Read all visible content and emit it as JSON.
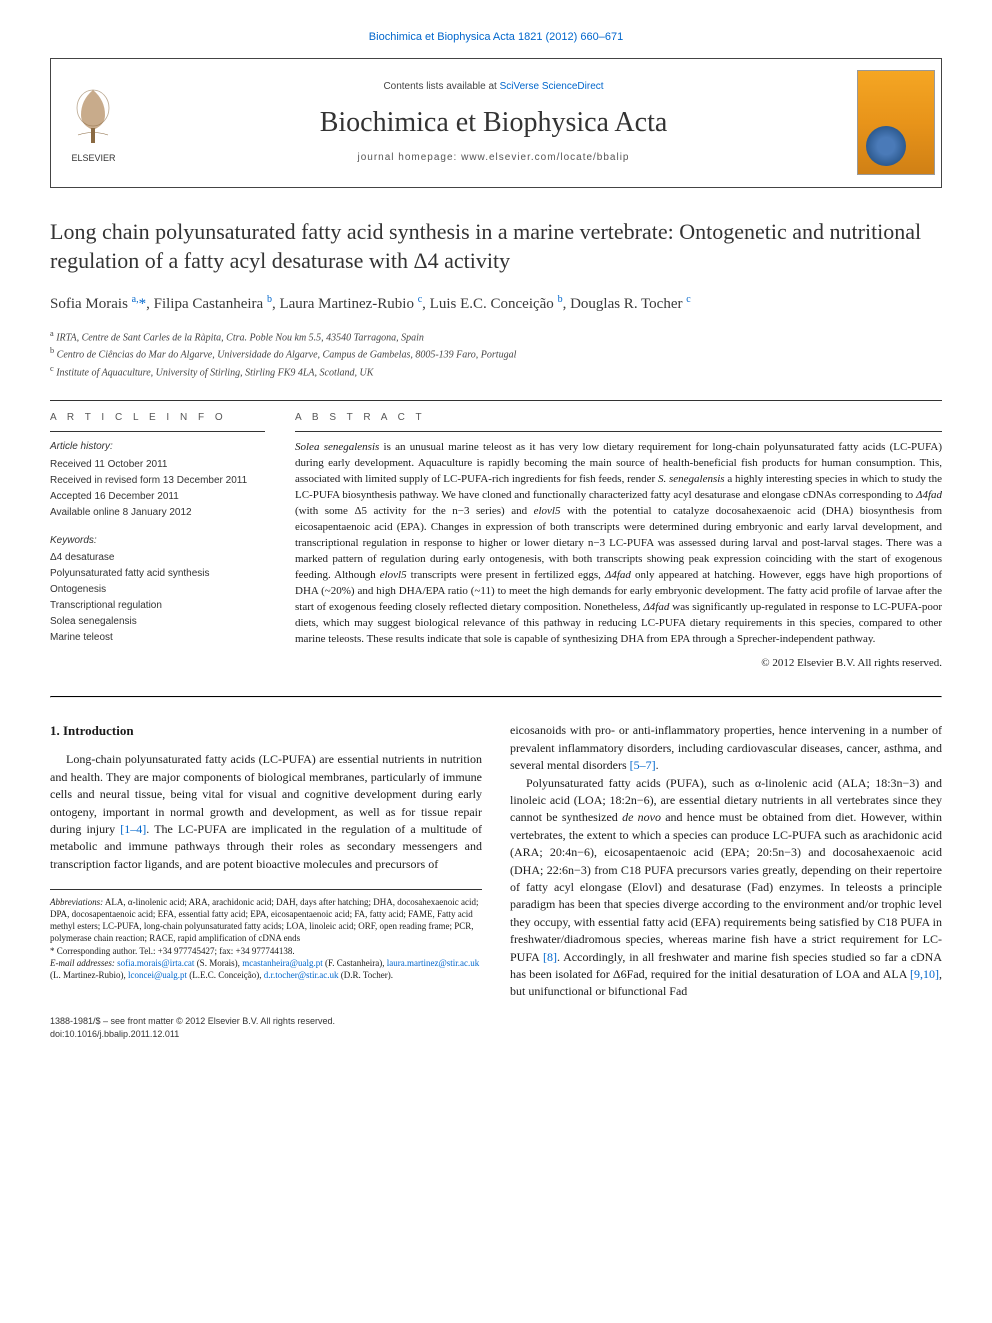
{
  "header": {
    "journal_link_text": "Biochimica et Biophysica Acta 1821 (2012) 660–671",
    "journal_link_color": "#0066cc",
    "contents_prefix": "Contents lists available at ",
    "contents_link": "SciVerse ScienceDirect",
    "journal_name": "Biochimica et Biophysica Acta",
    "homepage_label": "journal homepage: www.elsevier.com/locate/bbalip",
    "elsevier_label": "ELSEVIER",
    "cover_colors": {
      "top": "#f5a623",
      "mid": "#e8941a",
      "bot": "#d08015",
      "globe": "#4a7ab8"
    }
  },
  "title": "Long chain polyunsaturated fatty acid synthesis in a marine vertebrate: Ontogenetic and nutritional regulation of a fatty acyl desaturase with Δ4 activity",
  "authors_html": "Sofia Morais <sup>a,</sup><span class='corr'>*</span>, Filipa Castanheira <sup>b</sup>, Laura Martinez-Rubio <sup>c</sup>, Luis E.C. Conceição <sup>b</sup>, Douglas R. Tocher <sup>c</sup>",
  "affiliations": [
    {
      "sup": "a",
      "text": "IRTA, Centre de Sant Carles de la Ràpita, Ctra. Poble Nou km 5.5, 43540 Tarragona, Spain"
    },
    {
      "sup": "b",
      "text": "Centro de Ciências do Mar do Algarve, Universidade do Algarve, Campus de Gambelas, 8005-139 Faro, Portugal"
    },
    {
      "sup": "c",
      "text": "Institute of Aquaculture, University of Stirling, Stirling FK9 4LA, Scotland, UK"
    }
  ],
  "article_info": {
    "heading": "A R T I C L E   I N F O",
    "history_label": "Article history:",
    "history": [
      "Received 11 October 2011",
      "Received in revised form 13 December 2011",
      "Accepted 16 December 2011",
      "Available online 8 January 2012"
    ],
    "keywords_label": "Keywords:",
    "keywords": [
      "Δ4 desaturase",
      "Polyunsaturated fatty acid synthesis",
      "Ontogenesis",
      "Transcriptional regulation",
      "Solea senegalensis",
      "Marine teleost"
    ]
  },
  "abstract": {
    "heading": "A B S T R A C T",
    "text": "Solea senegalensis is an unusual marine teleost as it has very low dietary requirement for long-chain polyunsaturated fatty acids (LC-PUFA) during early development. Aquaculture is rapidly becoming the main source of health-beneficial fish products for human consumption. This, associated with limited supply of LC-PUFA-rich ingredients for fish feeds, render S. senegalensis a highly interesting species in which to study the LC-PUFA biosynthesis pathway. We have cloned and functionally characterized fatty acyl desaturase and elongase cDNAs corresponding to Δ4fad (with some Δ5 activity for the n−3 series) and elovl5 with the potential to catalyze docosahexaenoic acid (DHA) biosynthesis from eicosapentaenoic acid (EPA). Changes in expression of both transcripts were determined during embryonic and early larval development, and transcriptional regulation in response to higher or lower dietary n−3 LC-PUFA was assessed during larval and post-larval stages. There was a marked pattern of regulation during early ontogenesis, with both transcripts showing peak expression coinciding with the start of exogenous feeding. Although elovl5 transcripts were present in fertilized eggs, Δ4fad only appeared at hatching. However, eggs have high proportions of DHA (~20%) and high DHA/EPA ratio (~11) to meet the high demands for early embryonic development. The fatty acid profile of larvae after the start of exogenous feeding closely reflected dietary composition. Nonetheless, Δ4fad was significantly up-regulated in response to LC-PUFA-poor diets, which may suggest biological relevance of this pathway in reducing LC-PUFA dietary requirements in this species, compared to other marine teleosts. These results indicate that sole is capable of synthesizing DHA from EPA through a Sprecher-independent pathway.",
    "copyright": "© 2012 Elsevier B.V. All rights reserved."
  },
  "intro": {
    "heading": "1. Introduction",
    "p1": "Long-chain polyunsaturated fatty acids (LC-PUFA) are essential nutrients in nutrition and health. They are major components of biological membranes, particularly of immune cells and neural tissue, being vital for visual and cognitive development during early ontogeny, important in normal growth and development, as well as for tissue repair during injury [1–4]. The LC-PUFA are implicated in the regulation of a multitude of metabolic and immune pathways through their roles as secondary messengers and transcription factor ligands, and are potent bioactive molecules and precursors of",
    "p1_tail": "eicosanoids with pro- or anti-inflammatory properties, hence intervening in a number of prevalent inflammatory disorders, including cardiovascular diseases, cancer, asthma, and several mental disorders [5–7].",
    "p2": "Polyunsaturated fatty acids (PUFA), such as α-linolenic acid (ALA; 18:3n−3) and linoleic acid (LOA; 18:2n−6), are essential dietary nutrients in all vertebrates since they cannot be synthesized de novo and hence must be obtained from diet. However, within vertebrates, the extent to which a species can produce LC-PUFA such as arachidonic acid (ARA; 20:4n−6), eicosapentaenoic acid (EPA; 20:5n−3) and docosahexaenoic acid (DHA; 22:6n−3) from C18 PUFA precursors varies greatly, depending on their repertoire of fatty acyl elongase (Elovl) and desaturase (Fad) enzymes. In teleosts a principle paradigm has been that species diverge according to the environment and/or trophic level they occupy, with essential fatty acid (EFA) requirements being satisfied by C18 PUFA in freshwater/diadromous species, whereas marine fish have a strict requirement for LC-PUFA [8]. Accordingly, in all freshwater and marine fish species studied so far a cDNA has been isolated for Δ6Fad, required for the initial desaturation of LOA and ALA [9,10], but unifunctional or bifunctional Fad"
  },
  "footnotes": {
    "abbrev_label": "Abbreviations:",
    "abbrev": "ALA, α-linolenic acid; ARA, arachidonic acid; DAH, days after hatching; DHA, docosahexaenoic acid; DPA, docosapentaenoic acid; EFA, essential fatty acid; EPA, eicosapentaenoic acid; FA, fatty acid; FAME, Fatty acid methyl esters; LC-PUFA, long-chain polyunsaturated fatty acids; LOA, linoleic acid; ORF, open reading frame; PCR, polymerase chain reaction; RACE, rapid amplification of cDNA ends",
    "corr_label": "* Corresponding author. Tel.: +34 977745427; fax: +34 977744138.",
    "email_label": "E-mail addresses:",
    "emails": "sofia.morais@irta.cat (S. Morais), mcastanheira@ualg.pt (F. Castanheira), laura.martinez@stir.ac.uk (L. Martinez-Rubio), lconcei@ualg.pt (L.E.C. Conceição), d.r.tocher@stir.ac.uk (D.R. Tocher)."
  },
  "footer": {
    "left": "1388-1981/$ – see front matter © 2012 Elsevier B.V. All rights reserved.",
    "doi": "doi:10.1016/j.bbalip.2011.12.011"
  },
  "colors": {
    "link": "#0066cc",
    "text": "#1a1a1a",
    "rule": "#333333"
  }
}
